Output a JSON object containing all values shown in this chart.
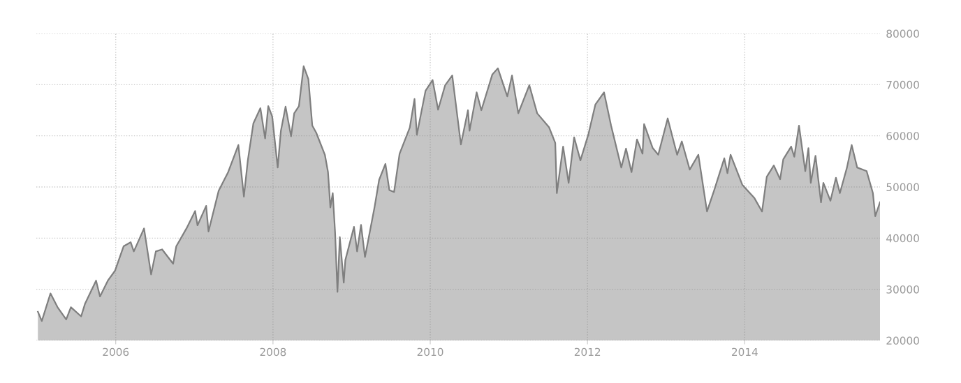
{
  "chart_data": {
    "type": "area",
    "x": [
      2005.01,
      2005.06,
      2005.17,
      2005.26,
      2005.37,
      2005.43,
      2005.56,
      2005.61,
      2005.75,
      2005.8,
      2005.9,
      2005.99,
      2006.1,
      2006.19,
      2006.23,
      2006.36,
      2006.45,
      2006.51,
      2006.59,
      2006.73,
      2006.77,
      2006.9,
      2007.01,
      2007.04,
      2007.15,
      2007.18,
      2007.31,
      2007.43,
      2007.56,
      2007.63,
      2007.68,
      2007.75,
      2007.84,
      2007.9,
      2007.94,
      2007.99,
      2008.06,
      2008.1,
      2008.16,
      2008.23,
      2008.27,
      2008.33,
      2008.39,
      2008.45,
      2008.5,
      2008.55,
      2008.66,
      2008.7,
      2008.73,
      2008.76,
      2008.79,
      2008.82,
      2008.85,
      2008.9,
      2008.92,
      2009.03,
      2009.07,
      2009.12,
      2009.17,
      2009.29,
      2009.35,
      2009.43,
      2009.48,
      2009.54,
      2009.61,
      2009.74,
      2009.8,
      2009.83,
      2009.94,
      2010.03,
      2010.1,
      2010.19,
      2010.28,
      2010.39,
      2010.48,
      2010.5,
      2010.59,
      2010.65,
      2010.79,
      2010.86,
      2010.98,
      2011.04,
      2011.12,
      2011.26,
      2011.36,
      2011.51,
      2011.59,
      2011.61,
      2011.69,
      2011.76,
      2011.83,
      2011.91,
      2012.01,
      2012.1,
      2012.21,
      2012.3,
      2012.43,
      2012.49,
      2012.56,
      2012.63,
      2012.7,
      2012.72,
      2012.83,
      2012.9,
      2013.02,
      2013.14,
      2013.2,
      2013.3,
      2013.41,
      2013.52,
      2013.61,
      2013.74,
      2013.78,
      2013.82,
      2013.97,
      2014.12,
      2014.22,
      2014.28,
      2014.37,
      2014.45,
      2014.49,
      2014.59,
      2014.63,
      2014.69,
      2014.77,
      2014.81,
      2014.84,
      2014.9,
      2014.97,
      2015.0,
      2015.09,
      2015.16,
      2015.21,
      2015.3,
      2015.36,
      2015.43,
      2015.55,
      2015.63,
      2015.66,
      2015.72
    ],
    "series": [
      {
        "color": "#7f7f7f",
        "values": [
          25600,
          23800,
          29200,
          26500,
          24100,
          26500,
          24700,
          27200,
          31700,
          28600,
          31700,
          33600,
          38400,
          39200,
          37400,
          41900,
          32900,
          37400,
          37800,
          35000,
          38400,
          41900,
          45300,
          42500,
          46300,
          41300,
          49300,
          52900,
          58200,
          48100,
          55200,
          62400,
          65400,
          59500,
          65800,
          63800,
          53800,
          60900,
          65700,
          59900,
          64400,
          65800,
          73600,
          71100,
          62000,
          60600,
          56300,
          52900,
          46000,
          48800,
          41100,
          29500,
          40200,
          31300,
          35700,
          42200,
          37400,
          42600,
          36300,
          45900,
          51400,
          54500,
          49400,
          49000,
          56500,
          61600,
          67200,
          60200,
          68800,
          70900,
          65100,
          69900,
          71800,
          58300,
          65000,
          61000,
          68500,
          65000,
          72000,
          73200,
          67700,
          71800,
          64400,
          69900,
          64400,
          61700,
          58600,
          48800,
          57900,
          50800,
          59700,
          55200,
          60200,
          66100,
          68500,
          62000,
          53800,
          57500,
          52900,
          59300,
          56500,
          62300,
          57600,
          56300,
          63400,
          56300,
          58900,
          53400,
          56300,
          45200,
          49300,
          55600,
          52700,
          56300,
          50400,
          47900,
          45200,
          52000,
          54200,
          51500,
          55400,
          57900,
          55900,
          62000,
          53100,
          57600,
          50800,
          56100,
          47000,
          50800,
          47300,
          51800,
          48800,
          53800,
          58200,
          53800,
          53100,
          48800,
          44300,
          47000
        ]
      }
    ],
    "xlim": [
      2004.99,
      2015.72
    ],
    "xticks": [
      2006,
      2008,
      2010,
      2012,
      2014
    ],
    "ylim": [
      20000,
      80000
    ],
    "yticks": [
      20000,
      30000,
      40000,
      50000,
      60000,
      70000,
      80000
    ],
    "grid": true
  }
}
